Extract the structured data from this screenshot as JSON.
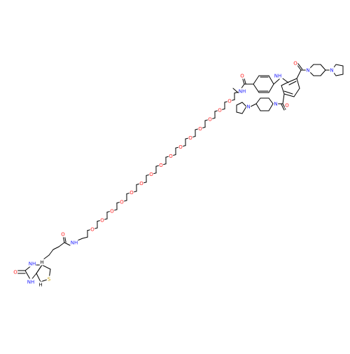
{
  "molecule": {
    "atom_labels": {
      "nitrogen": "N",
      "oxygen": "O",
      "sulfur": "S",
      "amine": "NH",
      "hydrogen": "H"
    },
    "colors": {
      "bond": "#000000",
      "nitrogen": "#2020ff",
      "oxygen": "#ff2020",
      "sulfur": "#c8a000",
      "background": "#ffffff"
    }
  }
}
